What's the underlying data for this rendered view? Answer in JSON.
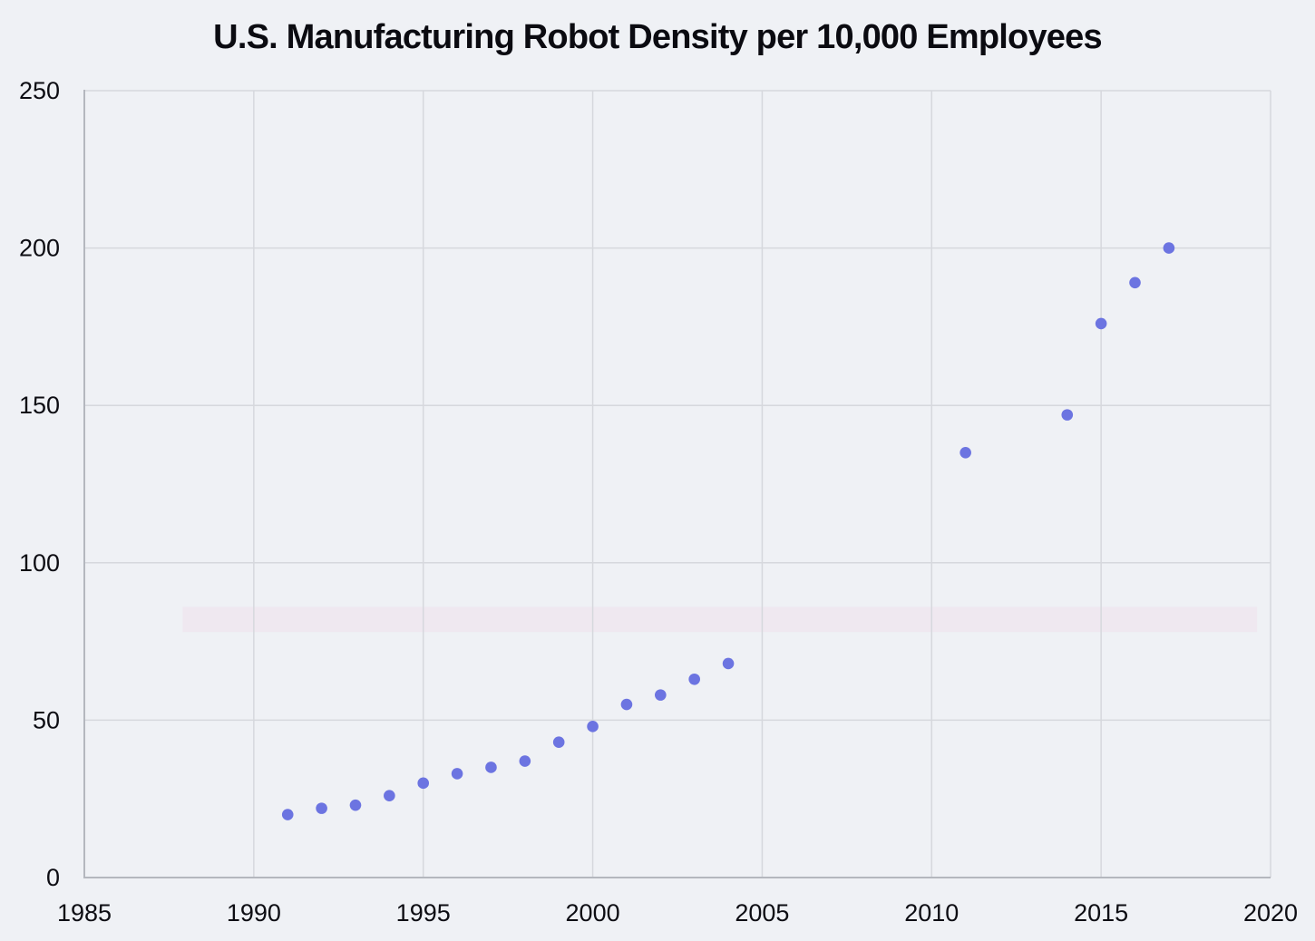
{
  "chart_data": {
    "type": "scatter",
    "title": "U.S. Manufacturing Robot Density per 10,000 Employees",
    "series_name": "Robot density per 10,000 employees",
    "x": [
      1991,
      1992,
      1993,
      1994,
      1995,
      1996,
      1997,
      1998,
      1999,
      2000,
      2001,
      2002,
      2003,
      2004,
      2011,
      2014,
      2015,
      2016,
      2017
    ],
    "values": [
      20,
      22,
      23,
      26,
      30,
      33,
      35,
      37,
      43,
      48,
      55,
      58,
      63,
      68,
      135,
      147,
      176,
      189,
      200
    ],
    "x_axis": {
      "min": 1985,
      "max": 2020,
      "ticks": [
        1985,
        1990,
        1995,
        2000,
        2005,
        2010,
        2015,
        2020
      ]
    },
    "y_axis": {
      "min": 0,
      "max": 250,
      "ticks": [
        0,
        50,
        100,
        150,
        200,
        250
      ]
    },
    "grid": true,
    "legend": false,
    "highlight_band": {
      "x_min": 1987.9,
      "x_max": 2019.6,
      "y_min": 78,
      "y_max": 86,
      "color": "#f2cfe4",
      "opacity": 0.28
    },
    "colors": {
      "background": "#eff1f5",
      "point": "#6c74e1",
      "gridline": "#d6d8dd",
      "axis": "#b4b7be",
      "text": "#0d0d13"
    }
  }
}
